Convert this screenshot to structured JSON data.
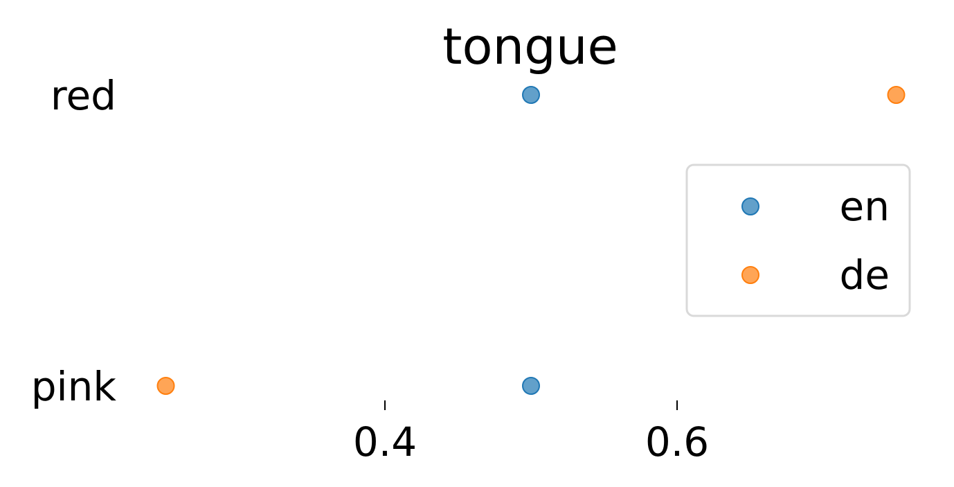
{
  "chart_data": {
    "type": "scatter",
    "title": "tongue",
    "xlabel": "",
    "ylabel": "",
    "categories": [
      "red",
      "pink"
    ],
    "x_ticks": [
      0.4,
      0.6
    ],
    "x_tick_labels": [
      "0.4",
      "0.6"
    ],
    "xlim": [
      0.15,
      0.81
    ],
    "grid": false,
    "legend_position": "right",
    "series": [
      {
        "name": "en",
        "color": "#1f77b4",
        "points": [
          {
            "category": "red",
            "x": 0.5
          },
          {
            "category": "pink",
            "x": 0.5
          }
        ]
      },
      {
        "name": "de",
        "color": "#ff7f0e",
        "points": [
          {
            "category": "red",
            "x": 0.75
          },
          {
            "category": "pink",
            "x": 0.25
          }
        ]
      }
    ]
  }
}
